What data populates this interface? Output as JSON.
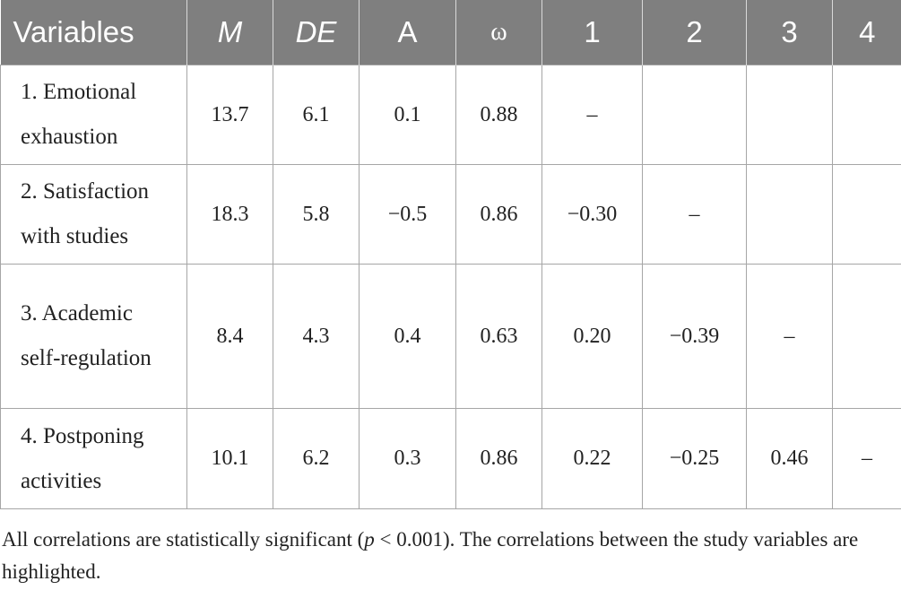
{
  "table": {
    "headers": {
      "variables": "Variables",
      "m": "M",
      "de": "DE",
      "a": "A",
      "omega": "ω",
      "c1": "1",
      "c2": "2",
      "c3": "3",
      "c4": "4"
    },
    "rows": [
      {
        "variable": "1. Emotional exhaustion",
        "m": "13.7",
        "de": "6.1",
        "a": "0.1",
        "omega": "0.88",
        "c1": "–",
        "c2": "",
        "c3": "",
        "c4": ""
      },
      {
        "variable": "2. Satisfaction with studies",
        "m": "18.3",
        "de": "5.8",
        "a": "−0.5",
        "omega": "0.86",
        "c1": "−0.30",
        "c2": "–",
        "c3": "",
        "c4": ""
      },
      {
        "variable": "3. Academic self-regulation",
        "m": "8.4",
        "de": "4.3",
        "a": "0.4",
        "omega": "0.63",
        "c1": "0.20",
        "c2": "−0.39",
        "c3": "–",
        "c4": ""
      },
      {
        "variable": "4. Postponing activities",
        "m": "10.1",
        "de": "6.2",
        "a": "0.3",
        "omega": "0.86",
        "c1": "0.22",
        "c2": "−0.25",
        "c3": "0.46",
        "c4": "–"
      }
    ]
  },
  "footnote": {
    "before_p": "All correlations are statistically significant (",
    "p_symbol": "p",
    "after_p": " < 0.001). The correlations between the study variables are highlighted."
  }
}
